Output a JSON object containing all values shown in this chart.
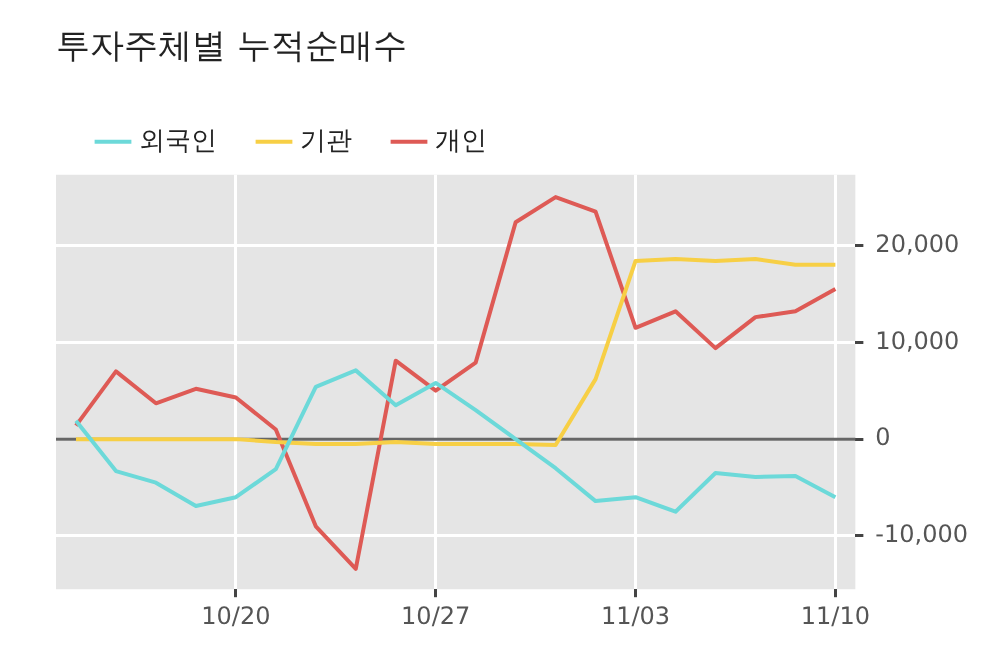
{
  "chart_data": {
    "type": "line",
    "title": "투자주체별 누적순매수",
    "categories": [
      null,
      null,
      null,
      null,
      "10/20",
      null,
      null,
      null,
      null,
      "10/27",
      null,
      null,
      null,
      null,
      "11/03",
      null,
      null,
      null,
      null,
      "11/10"
    ],
    "series": [
      {
        "name": "외국인",
        "color": "#6cd9d9",
        "values": [
          1900,
          -3300,
          -4500,
          -6900,
          -6000,
          -3100,
          5400,
          7100,
          3500,
          5800,
          3000,
          0,
          -3000,
          -6400,
          -6000,
          -7500,
          -3500,
          -3900,
          -3800,
          -6000
        ]
      },
      {
        "name": "기관",
        "color": "#f7cf45",
        "values": [
          0,
          0,
          0,
          0,
          0,
          -300,
          -500,
          -500,
          -300,
          -500,
          -500,
          -500,
          -600,
          6200,
          18400,
          18600,
          18400,
          18600,
          18000,
          18000
        ]
      },
      {
        "name": "개인",
        "color": "#de5a55",
        "values": [
          1400,
          7000,
          3700,
          5200,
          4300,
          1000,
          -9000,
          -13400,
          8100,
          5000,
          7900,
          22400,
          25000,
          23500,
          11500,
          13200,
          9400,
          12600,
          13200,
          15500
        ]
      }
    ],
    "ylim": [
      -15500,
      27300
    ],
    "yticks": [
      {
        "value": -10000,
        "label": "-10,000"
      },
      0,
      {
        "value": 10000,
        "label": "10,000"
      },
      {
        "value": 20000,
        "label": "20,000"
      }
    ],
    "ref_lines": [
      {
        "axis": "y",
        "value": 0,
        "color": "#666666"
      }
    ],
    "grid": true,
    "legend": "top left",
    "marker": "none",
    "line_style": "solid"
  }
}
